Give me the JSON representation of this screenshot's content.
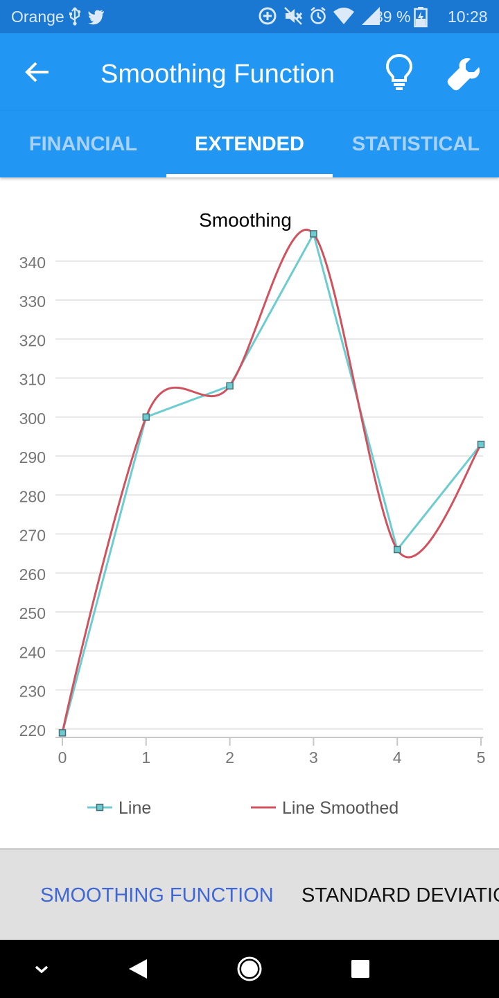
{
  "status_bar": {
    "carrier": "Orange",
    "battery": "39 %",
    "time": "10:28",
    "icons": [
      "usb-icon",
      "twitter-icon",
      "data-saver-icon",
      "mute-icon",
      "alarm-icon",
      "wifi-icon",
      "signal-icon",
      "battery-charging-icon"
    ]
  },
  "app_bar": {
    "title": "Smoothing Function",
    "icons": [
      "back-arrow-icon",
      "lightbulb-icon",
      "wrench-icon"
    ]
  },
  "tabs": [
    {
      "label": "FINANCIAL",
      "active": false
    },
    {
      "label": "EXTENDED",
      "active": true
    },
    {
      "label": "STATISTICAL",
      "active": false
    }
  ],
  "bottom_tabs": [
    {
      "label": "SMOOTHING FUNCTION",
      "active": true
    },
    {
      "label": "STANDARD DEVIATION",
      "active": false
    }
  ],
  "nav_bar": {
    "icons": [
      "chevron-down-icon",
      "back-triangle-icon",
      "home-circle-icon",
      "recents-square-icon"
    ]
  },
  "colors": {
    "status_bar": "#1a78d2",
    "app_bar": "#2196f3",
    "line_series": "#6cccd0",
    "smoothed_series": "#d0525e",
    "active_bottom_tab": "#3f67d6"
  },
  "chart_data": {
    "type": "line",
    "title": "Smoothing",
    "x": [
      0,
      1,
      2,
      3,
      4,
      5
    ],
    "xticks": [
      0,
      1,
      2,
      3,
      4,
      5
    ],
    "xlim": [
      0,
      5
    ],
    "yticks": [
      220,
      230,
      240,
      250,
      260,
      270,
      280,
      290,
      300,
      310,
      320,
      330,
      340
    ],
    "ylim": [
      218,
      346
    ],
    "grid": true,
    "legend_position": "bottom",
    "series": [
      {
        "name": "Line",
        "values": [
          219,
          300,
          308,
          347,
          266,
          293
        ],
        "marker": "square",
        "smoothed": false
      },
      {
        "name": "Line Smoothed",
        "values": [
          219,
          300,
          308,
          347,
          266,
          293
        ],
        "marker": "none",
        "smoothed": true
      }
    ]
  }
}
